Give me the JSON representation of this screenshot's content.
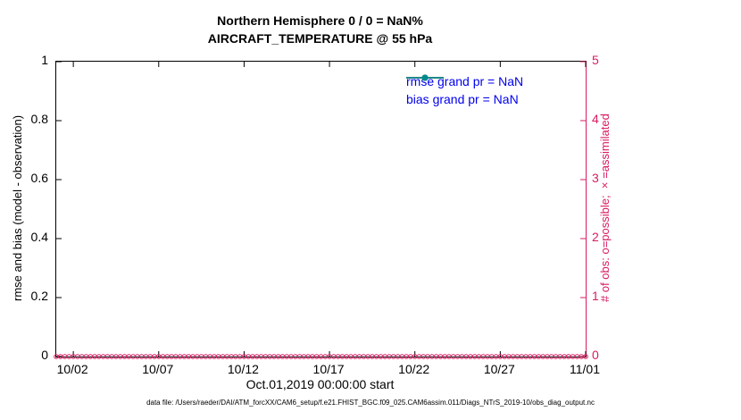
{
  "chart_data": {
    "type": "line",
    "title": "Northern Hemisphere 0 / 0 = NaN%",
    "subtitle": "AIRCRAFT_TEMPERATURE @ 55 hPa",
    "x_axis": {
      "label": "Oct.01,2019 00:00:00 start",
      "range_days": 31,
      "tick_days": [
        1,
        6,
        11,
        16,
        21,
        26,
        31
      ],
      "tick_labels": [
        "10/02",
        "10/07",
        "10/12",
        "10/17",
        "10/22",
        "10/27",
        "11/01"
      ]
    },
    "left_axis": {
      "label": "rmse and bias (model - observation)",
      "range": [
        0,
        1
      ],
      "ticks": [
        "0",
        "0.2",
        "0.4",
        "0.6",
        "0.8",
        "1"
      ],
      "color": "#000000"
    },
    "right_axis": {
      "label": "# of obs: o=possible; ×=assimilated",
      "range": [
        0,
        5
      ],
      "ticks": [
        "0",
        "1",
        "2",
        "3",
        "4",
        "5"
      ],
      "color": "#d81b60"
    },
    "series": [
      {
        "name": "rmse grand pr = NaN",
        "color": "#000000",
        "axis": "left",
        "values": []
      },
      {
        "name": "bias grand pr = NaN",
        "color": "#008b8b",
        "axis": "left",
        "values": []
      },
      {
        "name": "obs_possible",
        "marker": "o",
        "color": "#d81b60",
        "axis": "right",
        "constant_value": 0,
        "n_points": 125
      }
    ],
    "legend": {
      "position": "top-right",
      "text_color": "#0000ee",
      "entries": [
        {
          "label": "rmse grand pr = NaN",
          "color": "#000000"
        },
        {
          "label": "bias grand pr = NaN",
          "color": "#008b8b"
        }
      ]
    }
  },
  "caption": "data file: /Users/raeder/DAI/ATM_forcXX/CAM6_setup/f.e21.FHIST_BGC.f09_025.CAM6assim.011/Diags_NTrS_2019-10/obs_diag_output.nc"
}
